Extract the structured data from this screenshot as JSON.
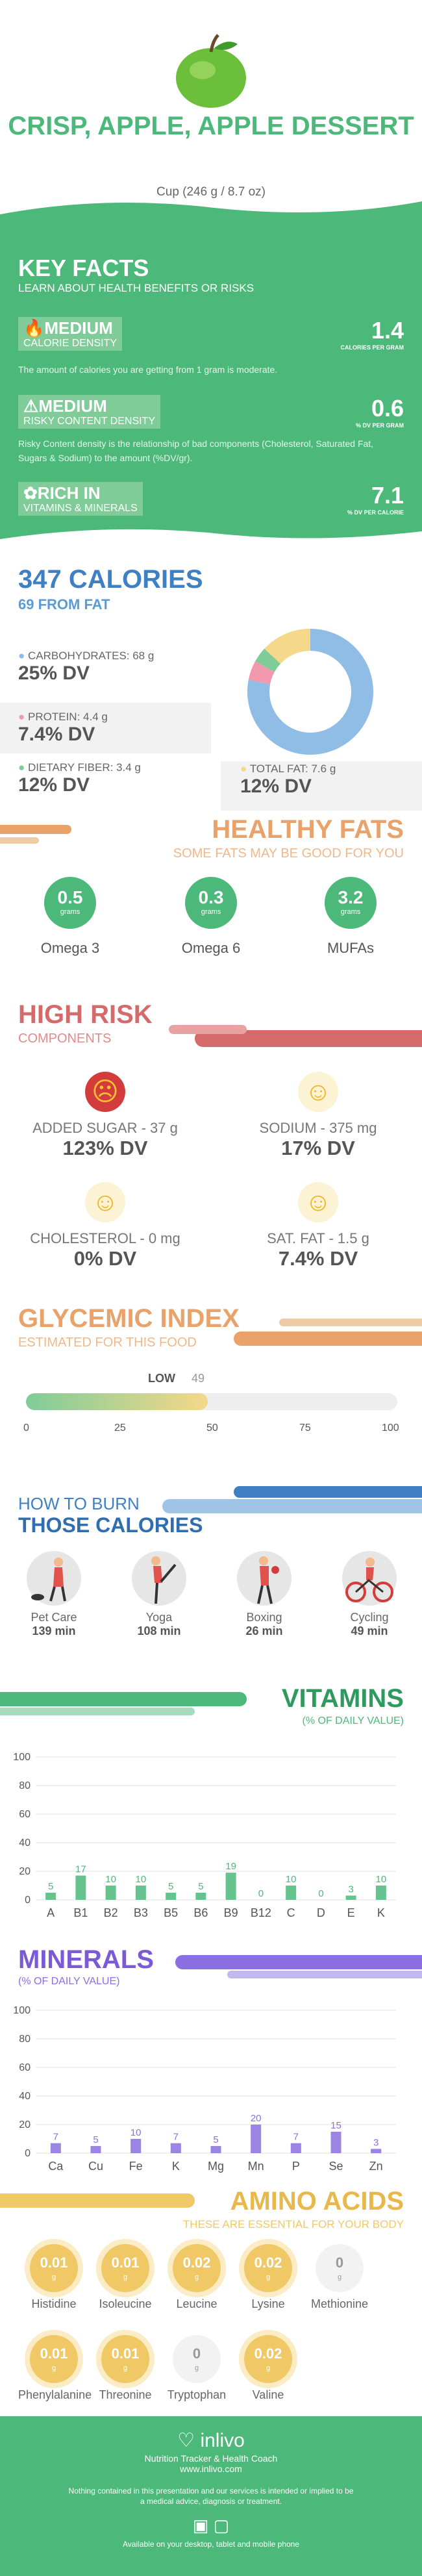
{
  "header": {
    "title": "CRISP, APPLE, APPLE DESSERT",
    "serving": "Cup (246 g / 8.7 oz)"
  },
  "key_facts": {
    "title": "KEY FACTS",
    "subtitle": "LEARN ABOUT HEALTH BENEFITS OR RISKS",
    "calorie_density": {
      "level": "MEDIUM",
      "label": "CALORIE DENSITY",
      "value": "1.4",
      "unit": "CALORIES PER GRAM",
      "description": "The amount of calories you are getting from 1 gram is moderate."
    },
    "risky_density": {
      "level": "MEDIUM",
      "label": "RISKY CONTENT DENSITY",
      "value": "0.6",
      "unit": "% DV PER GRAM",
      "description": "Risky Content density is the relationship of bad components (Cholesterol, Saturated Fat, Sugars & Sodium) to the amount (%DV/gr)."
    },
    "vitamins": {
      "level": "RICH  IN",
      "label": "VITAMINS & MINERALS",
      "value": "7.1",
      "unit": "% DV PER CALORIE"
    }
  },
  "calories": {
    "title": "347 CALORIES",
    "subtitle": "69 FROM FAT",
    "carbs": {
      "label": "CARBOHYDRATES: 68 g",
      "dv": "25% DV"
    },
    "protein": {
      "label": "PROTEIN: 4.4 g",
      "dv": "7.4% DV"
    },
    "fiber": {
      "label": "DIETARY FIBER: 3.4 g",
      "dv": "12% DV"
    },
    "fat": {
      "label": "TOTAL FAT: 7.6 g",
      "dv": "12% DV"
    },
    "donut": [
      {
        "name": "carbs",
        "value": 78,
        "color": "#8fbde6"
      },
      {
        "name": "protein",
        "value": 5,
        "color": "#f19aaf"
      },
      {
        "name": "fiber",
        "value": 4,
        "color": "#7fcc99"
      },
      {
        "name": "fat",
        "value": 13,
        "color": "#f5d889"
      }
    ]
  },
  "fats": {
    "title": "HEALTHY FATS",
    "subtitle": "SOME FATS MAY BE GOOD FOR YOU",
    "items": [
      {
        "value": "0.5",
        "unit": "grams",
        "label": "Omega 3"
      },
      {
        "value": "0.3",
        "unit": "grams",
        "label": "Omega 6"
      },
      {
        "value": "3.2",
        "unit": "grams",
        "label": "MUFAs"
      }
    ]
  },
  "risk": {
    "title": "HIGH RISK",
    "subtitle": "COMPONENTS",
    "items": [
      {
        "label": "ADDED SUGAR - 37 g",
        "dv": "123% DV",
        "face": "sad"
      },
      {
        "label": "SODIUM - 375 mg",
        "dv": "17% DV",
        "face": "happy"
      },
      {
        "label": "CHOLESTEROL - 0 mg",
        "dv": "0% DV",
        "face": "grin"
      },
      {
        "label": "SAT. FAT - 1.5 g",
        "dv": "7.4% DV",
        "face": "happy"
      }
    ]
  },
  "gi": {
    "title": "GLYCEMIC INDEX",
    "subtitle": "ESTIMATED FOR THIS FOOD",
    "level": "LOW",
    "value": "49",
    "value_num": 49,
    "ticks": [
      "0",
      "25",
      "50",
      "75",
      "100"
    ]
  },
  "burn": {
    "title1": "HOW TO BURN",
    "title2": "THOSE CALORIES",
    "items": [
      {
        "name": "Pet Care",
        "minutes": "139 min"
      },
      {
        "name": "Yoga",
        "minutes": "108 min"
      },
      {
        "name": "Boxing",
        "minutes": "26 min"
      },
      {
        "name": "Cycling",
        "minutes": "49 min"
      }
    ]
  },
  "vitamins": {
    "title": "VITAMINS",
    "subtitle": "(% OF DAILY VALUE)",
    "color": "#4cb87a",
    "yticks": [
      "100",
      "80",
      "60",
      "40",
      "20",
      "0"
    ],
    "categories": [
      "A",
      "B1",
      "B2",
      "B3",
      "B5",
      "B6",
      "B9",
      "B12",
      "C",
      "D",
      "E",
      "K"
    ],
    "values": [
      5,
      17,
      10,
      10,
      5,
      5,
      19,
      0,
      10,
      0,
      3,
      10
    ]
  },
  "minerals": {
    "title": "MINERALS",
    "subtitle": "(% OF DAILY VALUE)",
    "color": "#8b6fe0",
    "yticks": [
      "100",
      "80",
      "60",
      "40",
      "20",
      "0"
    ],
    "categories": [
      "Ca",
      "Cu",
      "Fe",
      "K",
      "Mg",
      "Mn",
      "P",
      "Se",
      "Zn"
    ],
    "values": [
      7,
      5,
      10,
      7,
      5,
      20,
      7,
      15,
      3
    ]
  },
  "amino": {
    "title": "AMINO ACIDS",
    "subtitle": "THESE ARE ESSENTIAL FOR YOUR BODY",
    "unit": "g",
    "items": [
      {
        "value": "0.01",
        "label": "Histidine",
        "active": true
      },
      {
        "value": "0.01",
        "label": "Isoleucine",
        "active": true
      },
      {
        "value": "0.02",
        "label": "Leucine",
        "active": true
      },
      {
        "value": "0.02",
        "label": "Lysine",
        "active": true
      },
      {
        "value": "0",
        "label": "Methionine",
        "active": false
      },
      {
        "value": "0.01",
        "label": "Phenylalanine",
        "active": true
      },
      {
        "value": "0.01",
        "label": "Threonine",
        "active": true
      },
      {
        "value": "0",
        "label": "Tryptophan",
        "active": false
      },
      {
        "value": "0.02",
        "label": "Valine",
        "active": true
      }
    ]
  },
  "footer": {
    "brand": "inlivo",
    "tagline": "Nutrition Tracker & Health Coach",
    "url": "www.inlivo.com",
    "disclaimer": "Nothing contained in this presentation and our services is intended or implied to be a medical advice, diagnosis or treatment.",
    "available": "Available on your desktop, tablet and mobile phone"
  }
}
